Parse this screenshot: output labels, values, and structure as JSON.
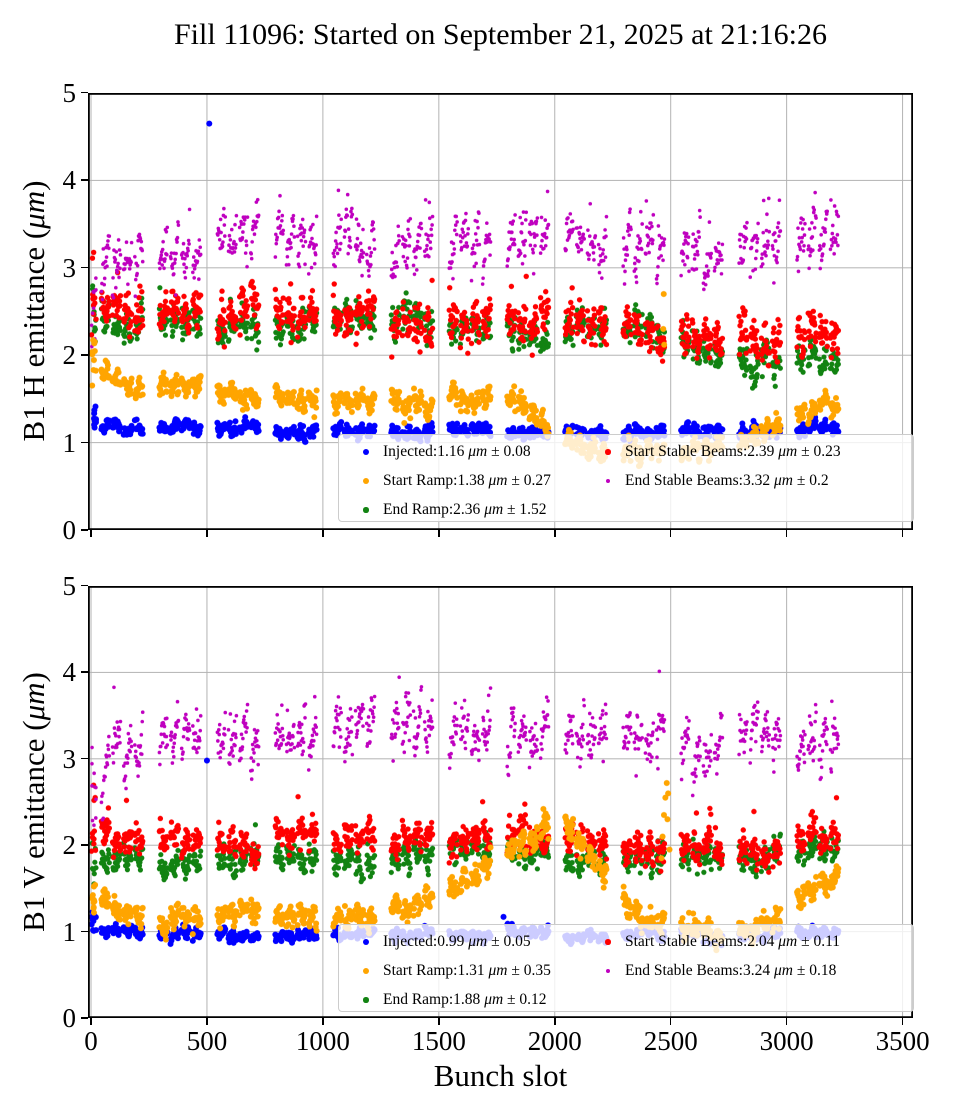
{
  "title": "Fill 11096: Started on September 21, 2025 at 21:16:26",
  "chart_data": [
    {
      "type": "scatter",
      "panel": "B1H",
      "ylabel_pre": "B1 H emittance (",
      "ylabel_units": "μm",
      "ylabel_post": ")",
      "xlim": [
        -13,
        3545
      ],
      "ylim": [
        0,
        5
      ],
      "xticks": [
        0,
        500,
        1000,
        1500,
        2000,
        2500,
        3000,
        3500
      ],
      "yticks": [
        0,
        1,
        2,
        3,
        4,
        5
      ],
      "grid": true,
      "grid_color": "#b3b3b3",
      "legend_position": "lower center-right, 2 columns",
      "trains": {
        "start": 45,
        "count": 13,
        "period": 250,
        "subtrains": 4,
        "sub_len": 36,
        "sub_gap": 12,
        "step": 2,
        "pilot_n": 10,
        "pilot_spread": 2.5
      },
      "series": [
        {
          "name": "Injected",
          "color": "#0000ff",
          "r": 3.0,
          "z": 3,
          "sigma": 0.035,
          "wave": 0.022,
          "slope": 0,
          "tail_p": 0,
          "tail": [
            0,
            0
          ],
          "mean": 1.16,
          "std": 0.08,
          "legend": {
            "label": "Injected",
            "mean": "1.16",
            "pm": "0.08"
          },
          "profile": [
            [
              0,
              1.3
            ],
            [
              40,
              1.2
            ],
            [
              200,
              1.18
            ],
            [
              700,
              1.17
            ],
            [
              1200,
              1.15
            ],
            [
              1900,
              1.13
            ],
            [
              2500,
              1.12
            ],
            [
              2900,
              1.12
            ],
            [
              3240,
              1.15
            ]
          ],
          "outliers": [
            [
              510,
              4.65
            ]
          ]
        },
        {
          "name": "Start Ramp",
          "color": "#ffa500",
          "r": 3.0,
          "z": 4,
          "sigma": 0.05,
          "wave": 0.05,
          "slope": 0,
          "tail_p": 0,
          "tail": [
            0,
            0
          ],
          "mean": 1.38,
          "std": 0.27,
          "legend": {
            "label": "Start Ramp",
            "mean": "1.38",
            "pm": "0.27"
          },
          "profile": [
            [
              0,
              1.88
            ],
            [
              100,
              1.72
            ],
            [
              250,
              1.62
            ],
            [
              600,
              1.58
            ],
            [
              900,
              1.48
            ],
            [
              1200,
              1.45
            ],
            [
              1500,
              1.5
            ],
            [
              1750,
              1.52
            ],
            [
              1850,
              1.4
            ],
            [
              2000,
              1.05
            ],
            [
              2150,
              0.93
            ],
            [
              2500,
              0.9
            ],
            [
              2750,
              0.92
            ],
            [
              2950,
              1.15
            ],
            [
              3060,
              1.35
            ],
            [
              3150,
              1.45
            ],
            [
              3240,
              1.38
            ]
          ],
          "outliers": [
            [
              2470,
              2.7
            ],
            [
              2468,
              2.3
            ],
            [
              2472,
              2.12
            ]
          ]
        },
        {
          "name": "End Ramp",
          "color": "#128312",
          "r": 2.6,
          "z": 0,
          "sigma": 0.085,
          "wave": 0.06,
          "slope": 0,
          "tail_p": 0.01,
          "tail": [
            0.15,
            0.35
          ],
          "mean": 2.36,
          "std": 1.52,
          "legend": {
            "label": "End Ramp",
            "mean": "2.36",
            "pm": "1.52"
          },
          "profile": [
            [
              0,
              2.4
            ],
            [
              150,
              2.3
            ],
            [
              500,
              2.36
            ],
            [
              1100,
              2.38
            ],
            [
              1700,
              2.32
            ],
            [
              2300,
              2.28
            ],
            [
              2600,
              2.15
            ],
            [
              2700,
              1.98
            ],
            [
              2850,
              1.95
            ],
            [
              3000,
              1.93
            ],
            [
              3240,
              1.92
            ]
          ],
          "outliers": []
        },
        {
          "name": "Start Stable Beams",
          "color": "#ff0000",
          "r": 2.7,
          "z": 1,
          "sigma": 0.1,
          "wave": 0.06,
          "slope": 0,
          "tail_p": 0.02,
          "tail": [
            0.2,
            0.5
          ],
          "mean": 2.39,
          "std": 0.23,
          "legend": {
            "label": "Start Stable Beams",
            "mean": "2.39",
            "pm": "0.23"
          },
          "profile": [
            [
              0,
              2.65
            ],
            [
              150,
              2.5
            ],
            [
              600,
              2.52
            ],
            [
              1100,
              2.5
            ],
            [
              1600,
              2.45
            ],
            [
              2000,
              2.38
            ],
            [
              2400,
              2.28
            ],
            [
              2700,
              2.18
            ],
            [
              2900,
              2.1
            ],
            [
              3100,
              2.15
            ],
            [
              3240,
              2.12
            ]
          ],
          "outliers": []
        },
        {
          "name": "End Stable Beams",
          "color": "#bf00bf",
          "r": 1.8,
          "z": 2,
          "sigma": 0.12,
          "wave": 0.09,
          "slope": 0.28,
          "tail_p": 0.05,
          "tail": [
            -0.45,
            0.5
          ],
          "mean": 3.32,
          "std": 0.2,
          "legend": {
            "label": "End Stable Beams",
            "mean": "3.32",
            "pm": "0.2"
          },
          "profile": [
            [
              0,
              2.5
            ],
            [
              60,
              3.1
            ],
            [
              250,
              3.28
            ],
            [
              700,
              3.32
            ],
            [
              1300,
              3.35
            ],
            [
              1800,
              3.38
            ],
            [
              2200,
              3.3
            ],
            [
              2500,
              3.32
            ],
            [
              2750,
              3.18
            ],
            [
              2950,
              3.28
            ],
            [
              3240,
              3.28
            ]
          ],
          "outliers": []
        }
      ]
    },
    {
      "type": "scatter",
      "panel": "B1V",
      "ylabel_pre": "B1 V emittance (",
      "ylabel_units": "μm",
      "ylabel_post": ")",
      "xlabel": "Bunch slot",
      "xlim": [
        -13,
        3545
      ],
      "ylim": [
        0,
        5
      ],
      "xticks": [
        0,
        500,
        1000,
        1500,
        2000,
        2500,
        3000,
        3500
      ],
      "yticks": [
        0,
        1,
        2,
        3,
        4,
        5
      ],
      "grid": true,
      "grid_color": "#b3b3b3",
      "legend_position": "lower center-right, 2 columns",
      "trains": {
        "start": 45,
        "count": 13,
        "period": 250,
        "subtrains": 4,
        "sub_len": 36,
        "sub_gap": 12,
        "step": 2,
        "pilot_n": 10,
        "pilot_spread": 2.5
      },
      "series": [
        {
          "name": "Injected",
          "color": "#0000ff",
          "r": 3.0,
          "z": 3,
          "sigma": 0.03,
          "wave": 0.02,
          "slope": 0,
          "tail_p": 0,
          "tail": [
            0,
            0
          ],
          "mean": 0.99,
          "std": 0.05,
          "legend": {
            "label": "Injected",
            "mean": "0.99",
            "pm": "0.05"
          },
          "profile": [
            [
              0,
              1.12
            ],
            [
              40,
              1.0
            ],
            [
              300,
              0.98
            ],
            [
              900,
              0.96
            ],
            [
              1500,
              0.99
            ],
            [
              2100,
              0.98
            ],
            [
              2700,
              0.97
            ],
            [
              3240,
              1.0
            ]
          ],
          "outliers": [
            [
              500,
              2.98
            ],
            [
              1779,
              1.17
            ]
          ]
        },
        {
          "name": "Start Ramp",
          "color": "#ffa500",
          "r": 3.0,
          "z": 4,
          "sigma": 0.06,
          "wave": 0.05,
          "slope": 0,
          "tail_p": 0,
          "tail": [
            0,
            0
          ],
          "mean": 1.31,
          "std": 0.35,
          "legend": {
            "label": "Start Ramp",
            "mean": "1.31",
            "pm": "0.35"
          },
          "profile": [
            [
              0,
              1.35
            ],
            [
              120,
              1.12
            ],
            [
              400,
              1.15
            ],
            [
              800,
              1.22
            ],
            [
              1100,
              1.15
            ],
            [
              1350,
              1.25
            ],
            [
              1550,
              1.5
            ],
            [
              1750,
              1.85
            ],
            [
              1950,
              2.2
            ],
            [
              2050,
              2.2
            ],
            [
              2200,
              1.7
            ],
            [
              2320,
              1.25
            ],
            [
              2450,
              1.1
            ],
            [
              2700,
              1.0
            ],
            [
              2900,
              1.12
            ],
            [
              3060,
              1.4
            ],
            [
              3240,
              1.72
            ]
          ],
          "outliers": [
            [
              2460,
              1.85
            ],
            [
              2465,
              2.1
            ],
            [
              2471,
              2.35
            ],
            [
              2477,
              2.55
            ],
            [
              2483,
              2.72
            ],
            [
              2489,
              2.6
            ],
            [
              2486,
              2.3
            ],
            [
              2495,
              1.95
            ]
          ]
        },
        {
          "name": "End Ramp",
          "color": "#128312",
          "r": 2.6,
          "z": 0,
          "sigma": 0.07,
          "wave": 0.05,
          "slope": 0,
          "tail_p": 0.01,
          "tail": [
            0.15,
            0.3
          ],
          "mean": 1.88,
          "std": 0.12,
          "legend": {
            "label": "End Ramp",
            "mean": "1.88",
            "pm": "0.12"
          },
          "profile": [
            [
              0,
              1.78
            ],
            [
              200,
              1.8
            ],
            [
              800,
              1.84
            ],
            [
              1400,
              1.86
            ],
            [
              2000,
              1.88
            ],
            [
              2600,
              1.84
            ],
            [
              3000,
              1.88
            ],
            [
              3240,
              1.95
            ]
          ],
          "outliers": []
        },
        {
          "name": "Start Stable Beams",
          "color": "#ff0000",
          "r": 2.7,
          "z": 1,
          "sigma": 0.08,
          "wave": 0.05,
          "slope": 0,
          "tail_p": 0.015,
          "tail": [
            0.2,
            0.45
          ],
          "mean": 2.04,
          "std": 0.11,
          "legend": {
            "label": "Start Stable Beams",
            "mean": "2.04",
            "pm": "0.11"
          },
          "profile": [
            [
              0,
              2.25
            ],
            [
              150,
              2.05
            ],
            [
              700,
              2.02
            ],
            [
              1300,
              2.04
            ],
            [
              1900,
              2.06
            ],
            [
              2500,
              2.0
            ],
            [
              2900,
              2.0
            ],
            [
              3240,
              2.08
            ]
          ],
          "outliers": []
        },
        {
          "name": "End Stable Beams",
          "color": "#bf00bf",
          "r": 1.8,
          "z": 2,
          "sigma": 0.12,
          "wave": 0.09,
          "slope": 0.28,
          "tail_p": 0.04,
          "tail": [
            -0.35,
            0.55
          ],
          "mean": 3.24,
          "std": 0.18,
          "legend": {
            "label": "End Stable Beams",
            "mean": "3.24",
            "pm": "0.18"
          },
          "profile": [
            [
              0,
              2.6
            ],
            [
              80,
              3.15
            ],
            [
              300,
              3.28
            ],
            [
              800,
              3.3
            ],
            [
              1400,
              3.35
            ],
            [
              1900,
              3.32
            ],
            [
              2300,
              3.35
            ],
            [
              2600,
              3.12
            ],
            [
              2800,
              3.18
            ],
            [
              3000,
              3.22
            ],
            [
              3240,
              3.28
            ]
          ],
          "outliers": []
        }
      ]
    }
  ]
}
